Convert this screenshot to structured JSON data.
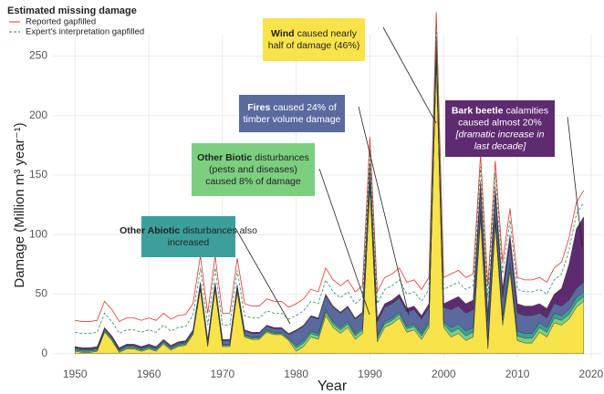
{
  "chart_data": {
    "type": "stacked_area",
    "x_label": "Year",
    "y_label": "Damage (Million m³ year⁻¹)",
    "legend_title": "Estimated missing damage",
    "x": [
      1950,
      1951,
      1952,
      1953,
      1954,
      1955,
      1956,
      1957,
      1958,
      1959,
      1960,
      1961,
      1962,
      1963,
      1964,
      1965,
      1966,
      1967,
      1968,
      1969,
      1970,
      1971,
      1972,
      1973,
      1974,
      1975,
      1976,
      1977,
      1978,
      1979,
      1980,
      1981,
      1982,
      1983,
      1984,
      1985,
      1986,
      1987,
      1988,
      1989,
      1990,
      1991,
      1992,
      1993,
      1994,
      1995,
      1996,
      1997,
      1998,
      1999,
      2000,
      2001,
      2002,
      2003,
      2004,
      2005,
      2006,
      2007,
      2008,
      2009,
      2010,
      2011,
      2012,
      2013,
      2014,
      2015,
      2016,
      2017,
      2018,
      2019
    ],
    "xlim": [
      1947,
      2021.5
    ],
    "xticks": [
      1950,
      1960,
      1970,
      1980,
      1990,
      2000,
      2010,
      2020
    ],
    "ylim": [
      -4,
      268
    ],
    "yticks": [
      0,
      50,
      100,
      150,
      200,
      250
    ],
    "grid": true,
    "series": [
      {
        "name": "Wind",
        "color": "#f9e34a",
        "values": [
          2,
          1,
          1,
          2,
          18,
          11,
          1,
          4,
          4,
          2,
          4,
          2,
          8,
          3,
          6,
          7,
          16,
          54,
          6,
          54,
          6,
          6,
          52,
          14,
          12,
          12,
          18,
          16,
          16,
          11,
          2,
          6,
          14,
          12,
          32,
          22,
          17,
          22,
          12,
          17,
          140,
          10,
          22,
          25,
          30,
          18,
          20,
          12,
          22,
          245,
          22,
          14,
          17,
          11,
          14,
          114,
          4,
          109,
          24,
          69,
          11,
          9,
          9,
          18,
          14,
          26,
          24,
          29,
          39,
          44
        ]
      },
      {
        "name": "Other Biotic",
        "color": "#7bcf7f",
        "values": [
          1,
          1,
          1,
          1,
          1,
          1,
          1,
          1,
          1,
          1,
          1,
          1,
          1,
          1,
          1,
          1,
          1,
          1,
          1,
          1,
          1,
          1,
          1,
          1,
          1,
          1,
          1,
          1,
          1,
          1,
          3,
          3,
          3,
          3,
          3,
          3,
          3,
          3,
          3,
          3,
          3,
          3,
          3,
          3,
          3,
          3,
          3,
          3,
          3,
          3,
          3,
          4,
          4,
          4,
          4,
          4,
          4,
          4,
          4,
          4,
          4,
          4,
          4,
          4,
          4,
          4,
          4,
          4,
          4,
          4
        ]
      },
      {
        "name": "Other Abiotic",
        "color": "#3c9f9b",
        "values": [
          1,
          1,
          1,
          1,
          1,
          1,
          1,
          1,
          1,
          1,
          1,
          1,
          1,
          1,
          1,
          1,
          1,
          1,
          1,
          1,
          1,
          1,
          1,
          1,
          1,
          1,
          1,
          1,
          1,
          1,
          2,
          2,
          2,
          2,
          2,
          2,
          2,
          2,
          2,
          2,
          2,
          2,
          2,
          2,
          2,
          2,
          2,
          2,
          2,
          2,
          2,
          4,
          4,
          4,
          4,
          4,
          4,
          4,
          4,
          4,
          4,
          4,
          4,
          4,
          4,
          4,
          4,
          4,
          4,
          4
        ]
      },
      {
        "name": "Fires",
        "color": "#5a6a9f",
        "values": [
          1,
          1,
          1,
          1,
          1,
          1,
          1,
          1,
          1,
          1,
          1,
          1,
          1,
          1,
          1,
          1,
          1,
          3,
          3,
          3,
          3,
          3,
          3,
          3,
          3,
          3,
          3,
          3,
          3,
          3,
          12,
          12,
          12,
          12,
          12,
          12,
          12,
          12,
          12,
          12,
          12,
          12,
          12,
          12,
          12,
          12,
          12,
          12,
          12,
          12,
          12,
          15,
          15,
          15,
          15,
          15,
          15,
          15,
          15,
          15,
          15,
          15,
          15,
          8,
          8,
          8,
          8,
          8,
          8,
          8
        ]
      },
      {
        "name": "Bark beetle",
        "color": "#5e2b70",
        "values": [
          1,
          1,
          1,
          1,
          1,
          1,
          1,
          1,
          1,
          1,
          1,
          1,
          1,
          1,
          1,
          1,
          1,
          1,
          1,
          1,
          1,
          1,
          1,
          1,
          1,
          1,
          1,
          1,
          1,
          1,
          1,
          1,
          1,
          1,
          1,
          1,
          1,
          1,
          1,
          1,
          3,
          3,
          3,
          3,
          3,
          3,
          3,
          3,
          3,
          3,
          3,
          8,
          8,
          8,
          8,
          8,
          8,
          8,
          8,
          8,
          8,
          8,
          8,
          8,
          8,
          8,
          15,
          30,
          50,
          55
        ]
      }
    ],
    "lines": [
      {
        "name": "Reported gapfilled",
        "color": "#e0352b",
        "values": [
          28,
          27,
          27,
          28,
          44,
          37,
          27,
          30,
          30,
          28,
          30,
          28,
          34,
          29,
          32,
          33,
          42,
          82,
          34,
          82,
          34,
          34,
          80,
          42,
          40,
          40,
          46,
          44,
          44,
          39,
          42,
          46,
          54,
          52,
          72,
          62,
          57,
          62,
          52,
          57,
          182,
          52,
          64,
          67,
          72,
          60,
          62,
          54,
          64,
          287,
          64,
          67,
          70,
          64,
          67,
          167,
          57,
          162,
          77,
          122,
          64,
          62,
          62,
          64,
          60,
          72,
          77,
          97,
          127,
          137
        ]
      },
      {
        "name": "Expert's interpretation gapfilled",
        "color": "#2e8b57",
        "dashed": true,
        "values": [
          18,
          17,
          17,
          18,
          34,
          27,
          17,
          20,
          20,
          18,
          20,
          18,
          24,
          19,
          22,
          23,
          32,
          72,
          24,
          72,
          24,
          24,
          70,
          32,
          30,
          30,
          36,
          34,
          34,
          29,
          32,
          36,
          44,
          42,
          62,
          52,
          47,
          52,
          42,
          47,
          172,
          42,
          54,
          57,
          62,
          50,
          52,
          44,
          54,
          277,
          54,
          57,
          60,
          54,
          57,
          157,
          47,
          152,
          67,
          112,
          54,
          52,
          52,
          54,
          50,
          62,
          67,
          87,
          117,
          127
        ]
      }
    ],
    "annotations": [
      {
        "lines": [
          "caused nearly",
          "half of damage (46%)"
        ]
      },
      {
        "lines": [
          "caused 24% of",
          "timber volume damage"
        ]
      },
      {
        "lines": [
          "disturbances",
          "(pests and diseases)",
          "caused 8% of damage"
        ]
      },
      {
        "lines": [
          "disturbances also",
          "increased"
        ]
      },
      {
        "lines": [
          "calamities",
          "caused almost 20%",
          "[dramatic increase in",
          "last decade]"
        ]
      }
    ]
  }
}
